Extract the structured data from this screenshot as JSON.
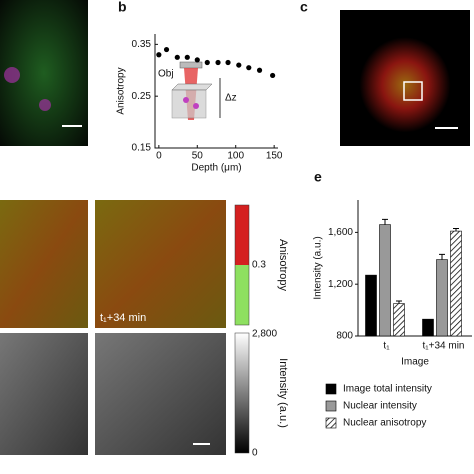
{
  "panel_labels": {
    "b": "b",
    "c": "c",
    "e": "e"
  },
  "inset": {
    "objective": "Obj",
    "delta_z": "Δz"
  },
  "image_labels": {
    "time": "t₁+34 min"
  },
  "colorbars": {
    "anisotropy_title": "Anisotropy",
    "anisotropy_tick": "0.3",
    "intensity_title": "Intensity (a.u.)",
    "intensity_max": "2,800",
    "intensity_min": "0"
  },
  "chart_data": [
    {
      "type": "scatter",
      "xlabel": "Depth (μm)",
      "ylabel": "Anisotropy",
      "color": "#000000",
      "x": [
        0,
        10,
        24,
        37,
        50,
        63,
        77,
        90,
        104,
        117,
        131,
        148
      ],
      "values": [
        0.33,
        0.34,
        0.325,
        0.325,
        0.32,
        0.315,
        0.315,
        0.315,
        0.31,
        0.305,
        0.3,
        0.29
      ],
      "xlim": [
        -5,
        155
      ],
      "xticks": [
        0,
        50,
        100,
        150
      ],
      "ylim": [
        0.15,
        0.37
      ],
      "yticks": [
        0.15,
        0.25,
        0.35
      ]
    },
    {
      "type": "bar",
      "xlabel": "Image",
      "ylabel": "Intensity (a.u.)",
      "categories": [
        "t₁",
        "t₁+34 min"
      ],
      "series": [
        {
          "name": "Image total intensity",
          "color": "#000000",
          "values": [
            1270,
            930
          ]
        },
        {
          "name": "Nuclear intensity",
          "color": "#999999",
          "values": [
            1660,
            1390
          ],
          "errors": [
            40,
            40
          ]
        },
        {
          "name": "Nuclear anisotropy",
          "color": "#ffffff",
          "hatch": true,
          "values": [
            1050,
            1610
          ],
          "errors": [
            20,
            20
          ]
        }
      ],
      "ylim": [
        800,
        1850
      ],
      "yticks": [
        {
          "value": 800,
          "label": "800"
        },
        {
          "value": 1200,
          "label": "1,200"
        },
        {
          "value": 1600,
          "label": "1,600"
        }
      ]
    }
  ]
}
